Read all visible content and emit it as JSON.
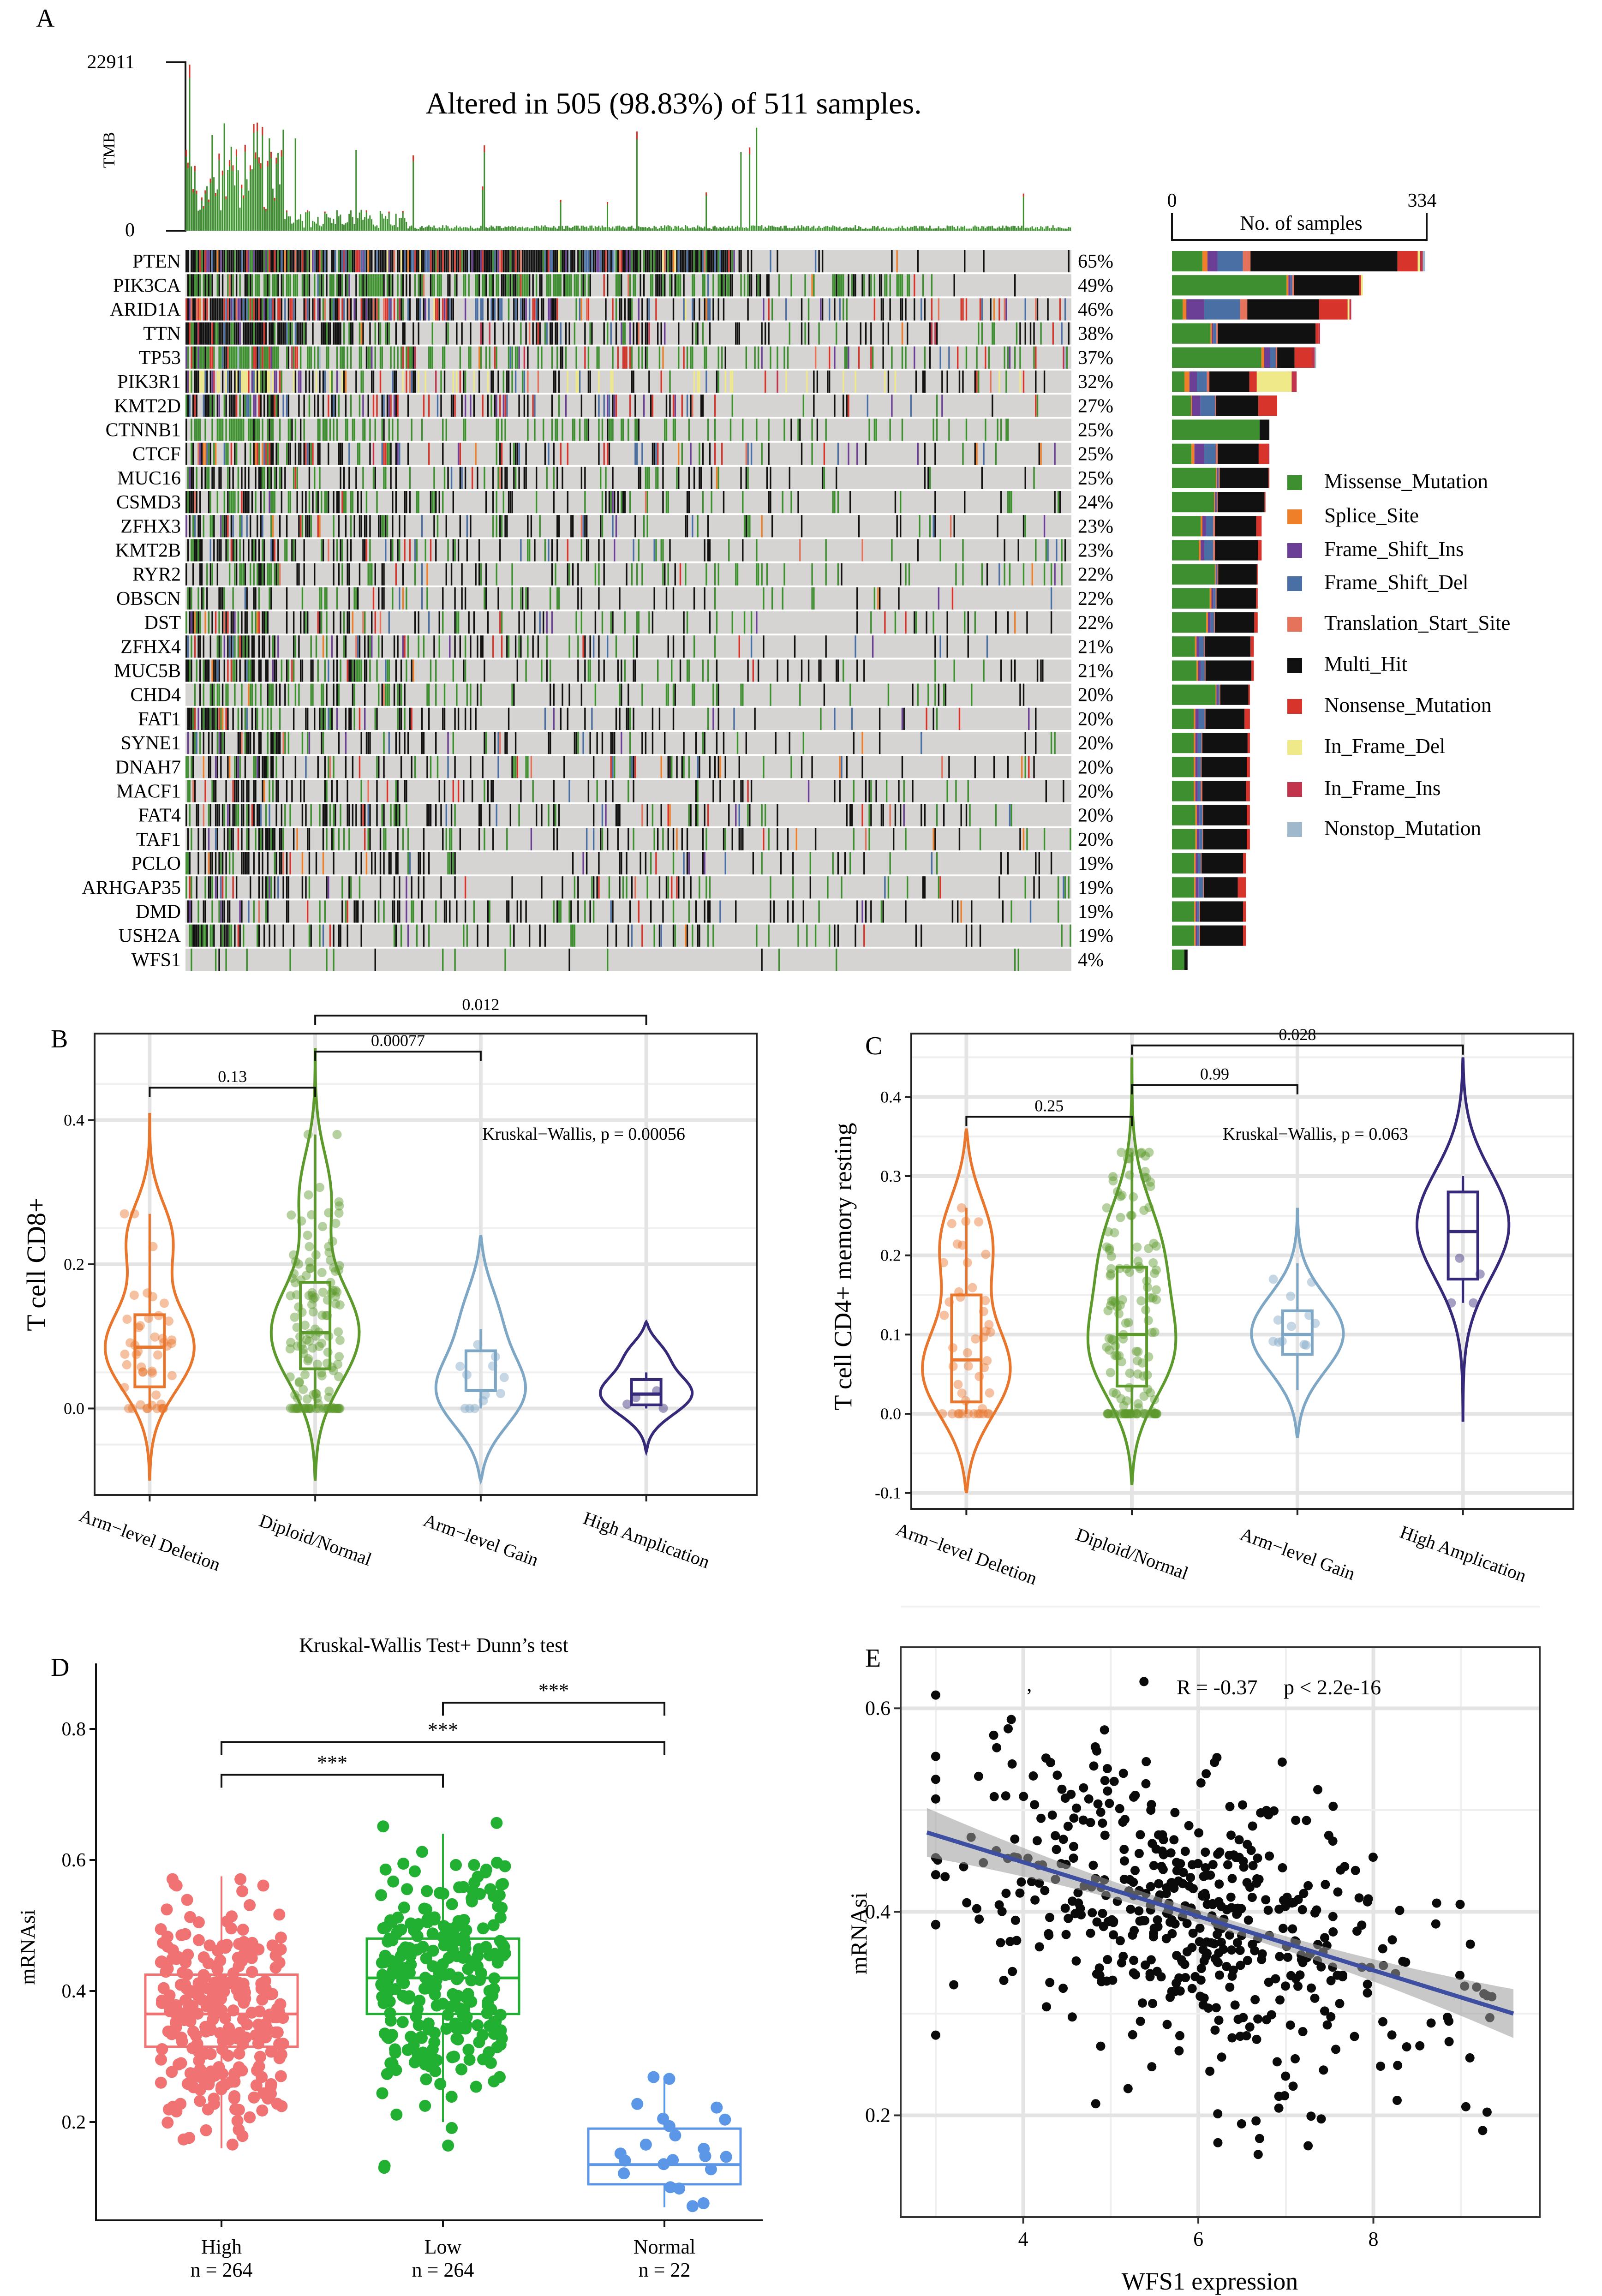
{
  "panel_labels": {
    "a": "A",
    "b": "B",
    "c": "C",
    "d": "D",
    "e": "E"
  },
  "palette": {
    "Missense_Mutation": "#3d8f2f",
    "Splice_Site": "#f07f2a",
    "Frame_Shift_Ins": "#6c3f96",
    "Frame_Shift_Del": "#4a6fa5",
    "Translation_Start_Site": "#e5735c",
    "Multi_Hit": "#111111",
    "Nonsense_Mutation": "#d7342b",
    "In_Frame_Del": "#efe98a",
    "In_Frame_Ins": "#c2344c",
    "Nonstop_Mutation": "#9fb8cc",
    "none": "#d6d4d2"
  },
  "chart_data": [
    {
      "type": "heatmap",
      "id": "oncoplot",
      "title": "Altered in 505 (98.83%) of 511 samples.",
      "tmb_label": "TMB",
      "tmb_max_label": "22911",
      "tmb_min_label": "0",
      "tmb_max": 22911,
      "n_samples": 511,
      "bar_axis_label": "No. of samples",
      "bar_axis_min_label": "0",
      "bar_axis_max_label": "334",
      "bar_max": 334,
      "genes": [
        {
          "name": "PTEN",
          "pct": "65%",
          "frac": 0.65,
          "mix": [
            0.12,
            0.02,
            0.04,
            0.1,
            0.03,
            0.58,
            0.08,
            0.01,
            0.01,
            0.01
          ]
        },
        {
          "name": "PIK3CA",
          "pct": "49%",
          "frac": 0.49,
          "mix": [
            0.6,
            0.01,
            0.01,
            0.01,
            0.01,
            0.34,
            0.01,
            0.01,
            0.0,
            0.0
          ]
        },
        {
          "name": "ARID1A",
          "pct": "46%",
          "frac": 0.46,
          "mix": [
            0.06,
            0.02,
            0.1,
            0.2,
            0.04,
            0.4,
            0.16,
            0.01,
            0.01,
            0.0
          ]
        },
        {
          "name": "TTN",
          "pct": "38%",
          "frac": 0.38,
          "mix": [
            0.26,
            0.01,
            0.01,
            0.02,
            0.01,
            0.66,
            0.02,
            0.0,
            0.01,
            0.0
          ]
        },
        {
          "name": "TP53",
          "pct": "37%",
          "frac": 0.37,
          "mix": [
            0.62,
            0.02,
            0.04,
            0.04,
            0.01,
            0.12,
            0.12,
            0.0,
            0.02,
            0.01
          ]
        },
        {
          "name": "PIK3R1",
          "pct": "32%",
          "frac": 0.32,
          "mix": [
            0.1,
            0.04,
            0.06,
            0.08,
            0.02,
            0.32,
            0.06,
            0.28,
            0.04,
            0.0
          ]
        },
        {
          "name": "KMT2D",
          "pct": "27%",
          "frac": 0.27,
          "mix": [
            0.18,
            0.01,
            0.08,
            0.14,
            0.01,
            0.4,
            0.18,
            0.0,
            0.0,
            0.0
          ]
        },
        {
          "name": "CTNNB1",
          "pct": "25%",
          "frac": 0.25,
          "mix": [
            0.9,
            0.0,
            0.0,
            0.0,
            0.0,
            0.1,
            0.0,
            0.0,
            0.0,
            0.0
          ]
        },
        {
          "name": "CTCF",
          "pct": "25%",
          "frac": 0.25,
          "mix": [
            0.2,
            0.03,
            0.1,
            0.12,
            0.02,
            0.42,
            0.1,
            0.0,
            0.01,
            0.0
          ]
        },
        {
          "name": "MUC16",
          "pct": "25%",
          "frac": 0.25,
          "mix": [
            0.45,
            0.01,
            0.01,
            0.01,
            0.01,
            0.5,
            0.01,
            0.0,
            0.0,
            0.0
          ]
        },
        {
          "name": "CSMD3",
          "pct": "24%",
          "frac": 0.24,
          "mix": [
            0.45,
            0.01,
            0.01,
            0.01,
            0.01,
            0.5,
            0.01,
            0.0,
            0.0,
            0.0
          ]
        },
        {
          "name": "ZFHX3",
          "pct": "23%",
          "frac": 0.23,
          "mix": [
            0.32,
            0.02,
            0.04,
            0.08,
            0.02,
            0.46,
            0.06,
            0.0,
            0.0,
            0.0
          ]
        },
        {
          "name": "KMT2B",
          "pct": "23%",
          "frac": 0.23,
          "mix": [
            0.3,
            0.02,
            0.04,
            0.1,
            0.02,
            0.48,
            0.04,
            0.0,
            0.0,
            0.0
          ]
        },
        {
          "name": "RYR2",
          "pct": "22%",
          "frac": 0.22,
          "mix": [
            0.5,
            0.01,
            0.01,
            0.01,
            0.01,
            0.45,
            0.01,
            0.0,
            0.0,
            0.0
          ]
        },
        {
          "name": "OBSCN",
          "pct": "22%",
          "frac": 0.22,
          "mix": [
            0.44,
            0.02,
            0.02,
            0.03,
            0.01,
            0.46,
            0.02,
            0.0,
            0.0,
            0.0
          ]
        },
        {
          "name": "DST",
          "pct": "22%",
          "frac": 0.22,
          "mix": [
            0.4,
            0.02,
            0.03,
            0.04,
            0.01,
            0.46,
            0.04,
            0.0,
            0.0,
            0.0
          ]
        },
        {
          "name": "ZFHX4",
          "pct": "21%",
          "frac": 0.21,
          "mix": [
            0.28,
            0.02,
            0.03,
            0.06,
            0.01,
            0.56,
            0.04,
            0.0,
            0.0,
            0.0
          ]
        },
        {
          "name": "MUC5B",
          "pct": "21%",
          "frac": 0.21,
          "mix": [
            0.3,
            0.02,
            0.03,
            0.05,
            0.01,
            0.56,
            0.03,
            0.0,
            0.0,
            0.0
          ]
        },
        {
          "name": "CHD4",
          "pct": "20%",
          "frac": 0.2,
          "mix": [
            0.56,
            0.01,
            0.02,
            0.02,
            0.01,
            0.36,
            0.02,
            0.0,
            0.0,
            0.0
          ]
        },
        {
          "name": "FAT1",
          "pct": "20%",
          "frac": 0.2,
          "mix": [
            0.28,
            0.02,
            0.04,
            0.08,
            0.01,
            0.5,
            0.07,
            0.0,
            0.0,
            0.0
          ]
        },
        {
          "name": "SYNE1",
          "pct": "20%",
          "frac": 0.2,
          "mix": [
            0.28,
            0.02,
            0.03,
            0.05,
            0.01,
            0.58,
            0.03,
            0.0,
            0.0,
            0.0
          ]
        },
        {
          "name": "DNAH7",
          "pct": "20%",
          "frac": 0.2,
          "mix": [
            0.28,
            0.02,
            0.03,
            0.04,
            0.01,
            0.58,
            0.04,
            0.0,
            0.0,
            0.0
          ]
        },
        {
          "name": "MACF1",
          "pct": "20%",
          "frac": 0.2,
          "mix": [
            0.28,
            0.02,
            0.03,
            0.04,
            0.02,
            0.56,
            0.05,
            0.0,
            0.0,
            0.0
          ]
        },
        {
          "name": "FAT4",
          "pct": "20%",
          "frac": 0.2,
          "mix": [
            0.3,
            0.02,
            0.03,
            0.04,
            0.01,
            0.56,
            0.04,
            0.0,
            0.0,
            0.0
          ]
        },
        {
          "name": "TAF1",
          "pct": "20%",
          "frac": 0.2,
          "mix": [
            0.3,
            0.02,
            0.03,
            0.04,
            0.01,
            0.56,
            0.04,
            0.0,
            0.0,
            0.0
          ]
        },
        {
          "name": "PCLO",
          "pct": "19%",
          "frac": 0.19,
          "mix": [
            0.3,
            0.02,
            0.03,
            0.04,
            0.01,
            0.56,
            0.04,
            0.0,
            0.0,
            0.0
          ]
        },
        {
          "name": "ARHGAP35",
          "pct": "19%",
          "frac": 0.19,
          "mix": [
            0.3,
            0.02,
            0.04,
            0.06,
            0.01,
            0.46,
            0.11,
            0.0,
            0.0,
            0.0
          ]
        },
        {
          "name": "DMD",
          "pct": "19%",
          "frac": 0.19,
          "mix": [
            0.3,
            0.02,
            0.02,
            0.03,
            0.01,
            0.58,
            0.04,
            0.0,
            0.0,
            0.0
          ]
        },
        {
          "name": "USH2A",
          "pct": "19%",
          "frac": 0.19,
          "mix": [
            0.3,
            0.02,
            0.02,
            0.03,
            0.01,
            0.58,
            0.04,
            0.0,
            0.0,
            0.0
          ]
        },
        {
          "name": "WFS1",
          "pct": "4%",
          "frac": 0.04,
          "mix": [
            0.8,
            0.0,
            0.0,
            0.0,
            0.0,
            0.2,
            0.0,
            0.0,
            0.0,
            0.0
          ]
        }
      ],
      "legend": [
        {
          "label": "Missense_Mutation",
          "key": "Missense_Mutation"
        },
        {
          "label": "Splice_Site",
          "key": "Splice_Site"
        },
        {
          "label": "Frame_Shift_Ins",
          "key": "Frame_Shift_Ins"
        },
        {
          "label": "Frame_Shift_Del",
          "key": "Frame_Shift_Del"
        },
        {
          "label": "Translation_Start_Site",
          "key": "Translation_Start_Site"
        },
        {
          "label": "Multi_Hit",
          "key": "Multi_Hit"
        },
        {
          "label": "Nonsense_Mutation",
          "key": "Nonsense_Mutation"
        },
        {
          "label": "In_Frame_Del",
          "key": "In_Frame_Del"
        },
        {
          "label": "In_Frame_Ins",
          "key": "In_Frame_Ins"
        },
        {
          "label": "Nonstop_Mutation",
          "key": "Nonstop_Mutation"
        }
      ]
    },
    {
      "type": "violin",
      "id": "cd8",
      "ylabel": "T cell CD8+",
      "ylim": [
        -0.12,
        0.52
      ],
      "yticks": [
        {
          "v": 0.0,
          "label": "0.0"
        },
        {
          "v": 0.2,
          "label": "0.2"
        },
        {
          "v": 0.4,
          "label": "0.4"
        }
      ],
      "annotation": "Kruskal−Wallis, p = 0.00056",
      "groups": [
        {
          "name": "Arm−level Deletion",
          "color": "#e8762c",
          "median": 0.085,
          "q1": 0.03,
          "q3": 0.13,
          "wlo": 0.0,
          "whi": 0.27,
          "vmin": -0.1,
          "vmax": 0.41,
          "modes": [
            [
              0.08,
              0.06,
              1.0
            ],
            [
              0.24,
              0.05,
              0.5
            ]
          ],
          "n": 45
        },
        {
          "name": "Diploid/Normal",
          "color": "#5d9a2c",
          "median": 0.105,
          "q1": 0.055,
          "q3": 0.175,
          "wlo": 0.0,
          "whi": 0.38,
          "vmin": -0.1,
          "vmax": 0.5,
          "modes": [
            [
              0.1,
              0.07,
              1.0
            ],
            [
              0.3,
              0.06,
              0.35
            ]
          ],
          "n": 140
        },
        {
          "name": "Arm−level Gain",
          "color": "#7ea7c5",
          "median": 0.025,
          "q1": 0.025,
          "q3": 0.08,
          "wlo": 0.0,
          "whi": 0.11,
          "vmin": -0.1,
          "vmax": 0.24,
          "modes": [
            [
              0.02,
              0.05,
              1.0
            ],
            [
              0.13,
              0.05,
              0.4
            ]
          ],
          "n": 12
        },
        {
          "name": "High Amplication",
          "color": "#352a7a",
          "median": 0.02,
          "q1": 0.005,
          "q3": 0.04,
          "wlo": 0.0,
          "whi": 0.05,
          "vmin": -0.06,
          "vmax": 0.12,
          "modes": [
            [
              0.02,
              0.03,
              1.0
            ],
            [
              0.08,
              0.02,
              0.35
            ]
          ],
          "n": 4
        }
      ],
      "comparisons": [
        {
          "g1": 0,
          "g2": 1,
          "y": 0.445,
          "label": "0.13"
        },
        {
          "g1": 1,
          "g2": 2,
          "y": 0.495,
          "label": "0.00077"
        },
        {
          "g1": 1,
          "g2": 3,
          "y": 0.545,
          "label": "0.012"
        }
      ]
    },
    {
      "type": "violin",
      "id": "cd4",
      "ylabel": "T cell CD4+ memory resting",
      "ylim": [
        -0.12,
        0.48
      ],
      "yticks": [
        {
          "v": -0.1,
          "label": "-0.1"
        },
        {
          "v": 0.0,
          "label": "0.0"
        },
        {
          "v": 0.1,
          "label": "0.1"
        },
        {
          "v": 0.2,
          "label": "0.2"
        },
        {
          "v": 0.3,
          "label": "0.3"
        },
        {
          "v": 0.4,
          "label": "0.4"
        }
      ],
      "annotation": "Kruskal−Wallis, p = 0.063",
      "groups": [
        {
          "name": "Arm−level Deletion",
          "color": "#e8762c",
          "median": 0.068,
          "q1": 0.015,
          "q3": 0.15,
          "wlo": 0.0,
          "whi": 0.26,
          "vmin": -0.1,
          "vmax": 0.36,
          "modes": [
            [
              0.05,
              0.06,
              1.0
            ],
            [
              0.22,
              0.06,
              0.6
            ]
          ],
          "n": 45
        },
        {
          "name": "Diploid/Normal",
          "color": "#5d9a2c",
          "median": 0.1,
          "q1": 0.035,
          "q3": 0.185,
          "wlo": 0.0,
          "whi": 0.33,
          "vmin": -0.09,
          "vmax": 0.45,
          "modes": [
            [
              0.07,
              0.06,
              1.0
            ],
            [
              0.2,
              0.07,
              0.75
            ]
          ],
          "n": 140
        },
        {
          "name": "Arm−level Gain",
          "color": "#7ea7c5",
          "median": 0.1,
          "q1": 0.075,
          "q3": 0.13,
          "wlo": 0.03,
          "whi": 0.19,
          "vmin": -0.03,
          "vmax": 0.26,
          "modes": [
            [
              0.1,
              0.05,
              1.0
            ]
          ],
          "n": 12
        },
        {
          "name": "High Amplication",
          "color": "#352a7a",
          "median": 0.23,
          "q1": 0.17,
          "q3": 0.28,
          "wlo": 0.14,
          "whi": 0.3,
          "vmin": -0.01,
          "vmax": 0.45,
          "modes": [
            [
              0.24,
              0.07,
              1.0
            ]
          ],
          "n": 4
        }
      ],
      "comparisons": [
        {
          "g1": 0,
          "g2": 1,
          "y": 0.375,
          "label": "0.25"
        },
        {
          "g1": 1,
          "g2": 2,
          "y": 0.415,
          "label": "0.99"
        },
        {
          "g1": 1,
          "g2": 3,
          "y": 0.465,
          "label": "0.028"
        }
      ]
    },
    {
      "type": "box",
      "id": "mrnasi",
      "title": "Kruskal-Wallis Test+ Dunn’s test",
      "ylabel": "mRNAsi",
      "ylim": [
        0.05,
        0.9
      ],
      "yticks": [
        {
          "v": 0.2,
          "label": "0.2"
        },
        {
          "v": 0.4,
          "label": "0.4"
        },
        {
          "v": 0.6,
          "label": "0.6"
        },
        {
          "v": 0.8,
          "label": "0.8"
        }
      ],
      "groups": [
        {
          "name": "High",
          "n_label": "n = 264",
          "color": "#f07272",
          "median": 0.365,
          "q1": 0.315,
          "q3": 0.425,
          "wlo": 0.16,
          "whi": 0.575,
          "jmin": 0.16,
          "jmax": 0.58,
          "n": 264
        },
        {
          "name": "Low",
          "n_label": "n = 264",
          "color": "#21b032",
          "median": 0.42,
          "q1": 0.365,
          "q3": 0.48,
          "wlo": 0.2,
          "whi": 0.64,
          "jmin": 0.1,
          "jmax": 0.67,
          "n": 264
        },
        {
          "name": "Normal",
          "n_label": "n = 22",
          "color": "#5b97e6",
          "median": 0.135,
          "q1": 0.105,
          "q3": 0.19,
          "wlo": 0.07,
          "whi": 0.27,
          "jmin": 0.07,
          "jmax": 0.28,
          "n": 22
        }
      ],
      "comparisons": [
        {
          "g1": 0,
          "g2": 1,
          "y": 0.73,
          "label": "***"
        },
        {
          "g1": 0,
          "g2": 2,
          "y": 0.78,
          "label": "***"
        },
        {
          "g1": 1,
          "g2": 2,
          "y": 0.84,
          "label": "***"
        }
      ]
    },
    {
      "type": "scatter",
      "id": "wfs1",
      "xlabel": "WFS1 expression",
      "ylabel": "mRNAsi",
      "xlim": [
        2.6,
        9.9
      ],
      "ylim": [
        0.1,
        0.66
      ],
      "xticks": [
        {
          "v": 4,
          "label": "4"
        },
        {
          "v": 6,
          "label": "6"
        },
        {
          "v": 8,
          "label": "8"
        }
      ],
      "yticks": [
        {
          "v": 0.2,
          "label": "0.2"
        },
        {
          "v": 0.4,
          "label": "0.4"
        },
        {
          "v": 0.6,
          "label": "0.6"
        }
      ],
      "annotation_r": "R = -0.37",
      "annotation_p": "p < 2.2e-16",
      "stray_mark": ",",
      "fit": {
        "x0": 2.9,
        "y0": 0.478,
        "x1": 9.6,
        "y1": 0.3,
        "se_lo": 0.012,
        "se_mid": 0.006
      },
      "n": 511,
      "x_mean": 5.9,
      "x_sd": 1.3,
      "resid_sd": 0.075
    }
  ],
  "x_axis_titles": {
    "d_groups": [
      "High",
      "Low",
      "Normal"
    ]
  }
}
